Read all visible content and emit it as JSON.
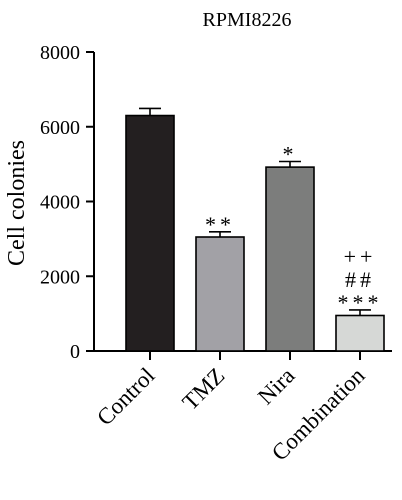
{
  "chart_data": {
    "type": "bar",
    "title": "RPMI8226",
    "ylabel": "Cell colonies",
    "xlabel": "",
    "ylim": [
      0,
      8000
    ],
    "yticks": [
      0,
      2000,
      4000,
      6000,
      8000
    ],
    "categories": [
      "Control",
      "TMZ",
      "Nira",
      "Combination"
    ],
    "values": [
      6300,
      3050,
      4920,
      950
    ],
    "errors": [
      190,
      140,
      150,
      150
    ],
    "bar_colors": [
      "#231f20",
      "#a2a1a6",
      "#7c7d7c",
      "#d6d8d6"
    ],
    "annotations": [
      [],
      [
        "**"
      ],
      [
        "*"
      ],
      [
        "++",
        "##",
        "***"
      ]
    ],
    "grid": false,
    "legend": "none"
  }
}
